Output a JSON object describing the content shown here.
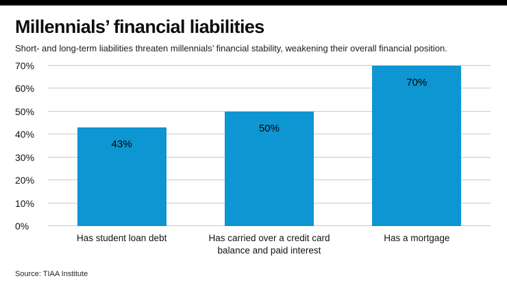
{
  "page": {
    "title": "Millennials’ financial liabilities",
    "subtitle": "Short- and long-term liabilities threaten millennials’ financial stability, weakening their overall financial position.",
    "source": "Source: TIAA Institute"
  },
  "colors": {
    "top_strip": "#000000",
    "bar": "#0d96d2",
    "gridline": "#c9c9c9"
  },
  "chart_data": {
    "type": "bar",
    "title": "Millennials’ financial liabilities",
    "subtitle": "Short- and long-term liabilities threaten millennials’ financial stability, weakening their overall financial position.",
    "categories": [
      "Has student loan debt",
      "Has carried over a credit card balance and paid interest",
      "Has a mortgage"
    ],
    "values": [
      43,
      50,
      70
    ],
    "value_labels": [
      "43%",
      "50%",
      "70%"
    ],
    "xlabel": "",
    "ylabel": "",
    "ylim": [
      0,
      70
    ],
    "yticks": [
      0,
      10,
      20,
      30,
      40,
      50,
      60,
      70
    ],
    "ytick_labels": [
      "0%",
      "10%",
      "20%",
      "30%",
      "40%",
      "50%",
      "60%",
      "70%"
    ],
    "grid": true,
    "legend": false,
    "bar_color": "#0d96d2",
    "value_label_position": "inside-top",
    "source": "Source: TIAA Institute"
  }
}
